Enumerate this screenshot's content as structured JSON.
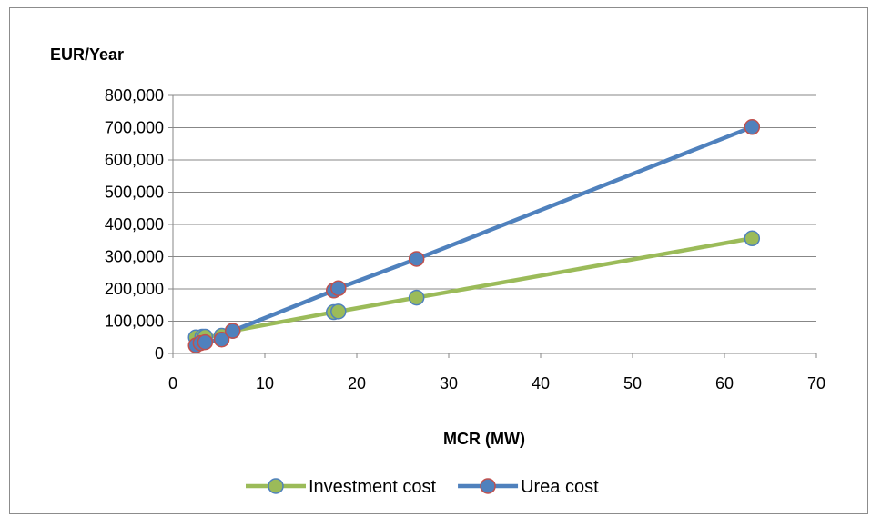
{
  "chart_data": {
    "type": "scatter",
    "title": "",
    "xlabel": "MCR (MW)",
    "ylabel": "EUR/Year",
    "xlim": [
      0,
      70
    ],
    "ylim": [
      0,
      800000
    ],
    "xticks": [
      "0",
      "10",
      "20",
      "30",
      "40",
      "50",
      "60",
      "70"
    ],
    "yticks": [
      "0",
      "100,000",
      "200,000",
      "300,000",
      "400,000",
      "500,000",
      "600,000",
      "700,000",
      "800,000"
    ],
    "grid": "horizontal",
    "legend_position": "bottom",
    "series": [
      {
        "name": "Investment cost",
        "line_color": "#9bbb59",
        "marker_fill": "#9bbb59",
        "marker_edge": "#4f81bd",
        "points": [
          {
            "x": 2.5,
            "y": 50000
          },
          {
            "x": 3.2,
            "y": 52000
          },
          {
            "x": 3.5,
            "y": 52000
          },
          {
            "x": 5.3,
            "y": 55000
          },
          {
            "x": 6.5,
            "y": 70000
          },
          {
            "x": 17.5,
            "y": 128000
          },
          {
            "x": 18.0,
            "y": 130000
          },
          {
            "x": 26.5,
            "y": 173000
          },
          {
            "x": 63.0,
            "y": 357000
          }
        ]
      },
      {
        "name": "Urea cost",
        "line_color": "#4f81bd",
        "marker_fill": "#4f81bd",
        "marker_edge": "#c0504d",
        "points": [
          {
            "x": 2.5,
            "y": 25000
          },
          {
            "x": 3.0,
            "y": 32000
          },
          {
            "x": 3.5,
            "y": 35000
          },
          {
            "x": 5.3,
            "y": 43000
          },
          {
            "x": 6.5,
            "y": 70000
          },
          {
            "x": 17.5,
            "y": 195000
          },
          {
            "x": 18.0,
            "y": 202000
          },
          {
            "x": 26.5,
            "y": 293000
          },
          {
            "x": 63.0,
            "y": 702000
          }
        ]
      }
    ]
  }
}
